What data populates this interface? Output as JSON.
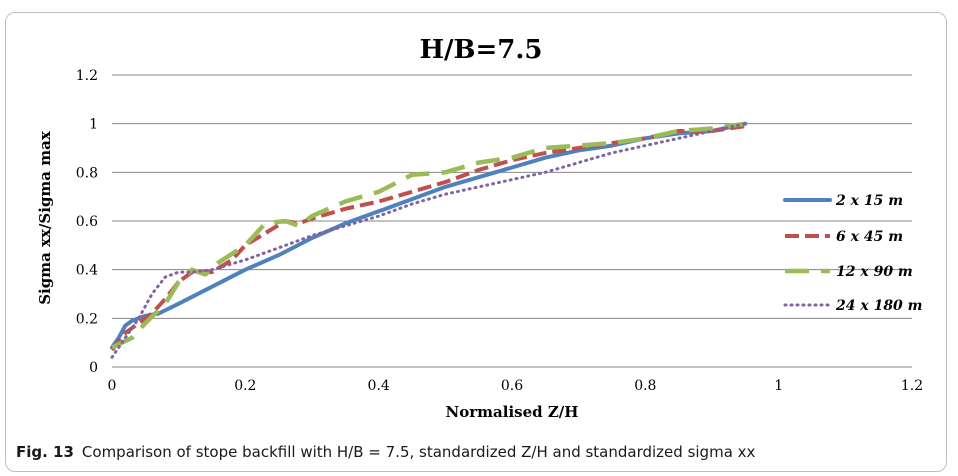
{
  "caption": {
    "label": "Fig. 13",
    "text": "Comparison of stope backfill with H/B = 7.5, standardized Z/H and standardized sigma xx"
  },
  "chart_data": {
    "type": "line",
    "title": "H/B=7.5",
    "xlabel": "Normalised Z/H",
    "ylabel": "Sigma xx/Sigma max",
    "xlim": [
      0,
      1.2
    ],
    "ylim": [
      0,
      1.2
    ],
    "xticks": [
      "0",
      "0.2",
      "0.4",
      "0.6",
      "0.8",
      "1",
      "1.2"
    ],
    "yticks": [
      "0",
      "0.2",
      "0.4",
      "0.6",
      "0.8",
      "1",
      "1.2"
    ],
    "grid": "horizontal",
    "legend_position": "right",
    "series": [
      {
        "name": "2 x 15 m",
        "color": "#4f81bd",
        "style": "solid",
        "x": [
          0,
          0.01,
          0.02,
          0.03,
          0.05,
          0.07,
          0.1,
          0.15,
          0.2,
          0.25,
          0.3,
          0.35,
          0.4,
          0.45,
          0.5,
          0.55,
          0.6,
          0.65,
          0.7,
          0.75,
          0.8,
          0.85,
          0.9,
          0.95
        ],
        "y": [
          0.08,
          0.12,
          0.17,
          0.19,
          0.21,
          0.22,
          0.26,
          0.33,
          0.4,
          0.46,
          0.53,
          0.59,
          0.64,
          0.69,
          0.74,
          0.78,
          0.82,
          0.86,
          0.89,
          0.91,
          0.94,
          0.96,
          0.97,
          1.0
        ]
      },
      {
        "name": "6 x 45 m",
        "color": "#c0504d",
        "style": "dashed",
        "x": [
          0,
          0.02,
          0.04,
          0.06,
          0.08,
          0.1,
          0.12,
          0.15,
          0.18,
          0.2,
          0.23,
          0.26,
          0.28,
          0.3,
          0.35,
          0.4,
          0.45,
          0.5,
          0.55,
          0.6,
          0.65,
          0.7,
          0.75,
          0.8,
          0.85,
          0.9,
          0.95
        ],
        "y": [
          0.07,
          0.14,
          0.18,
          0.22,
          0.28,
          0.35,
          0.39,
          0.39,
          0.44,
          0.5,
          0.55,
          0.6,
          0.59,
          0.61,
          0.65,
          0.68,
          0.72,
          0.76,
          0.81,
          0.85,
          0.88,
          0.9,
          0.92,
          0.94,
          0.97,
          0.97,
          0.99
        ]
      },
      {
        "name": "12 x 90 m",
        "color": "#9bbb59",
        "style": "long-dash",
        "x": [
          0,
          0.03,
          0.05,
          0.08,
          0.1,
          0.12,
          0.14,
          0.16,
          0.2,
          0.23,
          0.26,
          0.28,
          0.3,
          0.35,
          0.4,
          0.45,
          0.5,
          0.55,
          0.6,
          0.65,
          0.7,
          0.75,
          0.8,
          0.85,
          0.9,
          0.95
        ],
        "y": [
          0.08,
          0.12,
          0.18,
          0.26,
          0.35,
          0.4,
          0.38,
          0.43,
          0.5,
          0.59,
          0.6,
          0.58,
          0.62,
          0.68,
          0.72,
          0.79,
          0.8,
          0.84,
          0.86,
          0.9,
          0.91,
          0.92,
          0.94,
          0.97,
          0.98,
          1.0
        ]
      },
      {
        "name": "24 x 180 m",
        "color": "#8064a2",
        "style": "dotted",
        "x": [
          0,
          0.02,
          0.04,
          0.06,
          0.08,
          0.1,
          0.12,
          0.15,
          0.2,
          0.25,
          0.3,
          0.35,
          0.4,
          0.45,
          0.5,
          0.55,
          0.6,
          0.65,
          0.7,
          0.75,
          0.8,
          0.85,
          0.9,
          0.95
        ],
        "y": [
          0.04,
          0.12,
          0.2,
          0.3,
          0.37,
          0.39,
          0.39,
          0.4,
          0.44,
          0.49,
          0.54,
          0.58,
          0.62,
          0.67,
          0.71,
          0.74,
          0.77,
          0.8,
          0.84,
          0.88,
          0.91,
          0.94,
          0.97,
          1.0
        ]
      }
    ]
  }
}
